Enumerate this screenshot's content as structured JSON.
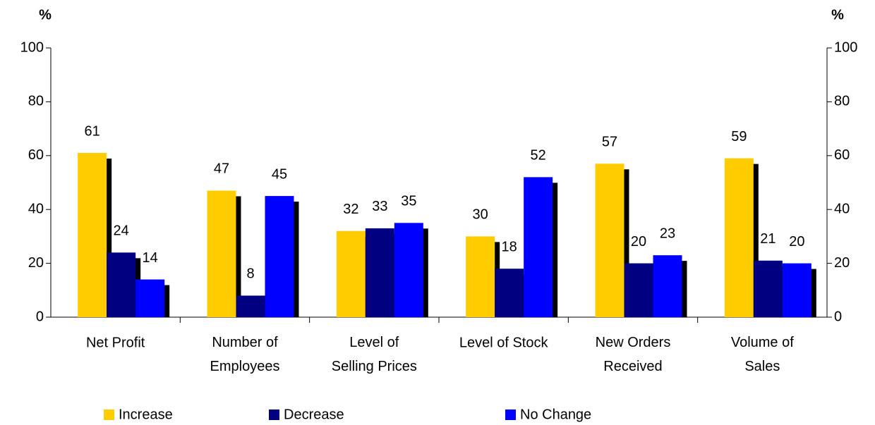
{
  "chart_data": {
    "type": "bar",
    "y_label": "%",
    "y2_label": "%",
    "categories": [
      "Net Profit",
      "Number of\nEmployees",
      "Level of\nSelling Prices",
      "Level of  Stock",
      "New  Orders\nReceived",
      "Volume of\nSales"
    ],
    "series": [
      {
        "name": "Increase",
        "color": "#FFCC00",
        "values": [
          61,
          47,
          32,
          30,
          57,
          59
        ]
      },
      {
        "name": "Decrease",
        "color": "#000080",
        "values": [
          24,
          8,
          33,
          18,
          20,
          21
        ]
      },
      {
        "name": "No Change",
        "color": "#0000FF",
        "values": [
          14,
          45,
          35,
          52,
          23,
          20
        ]
      }
    ],
    "ylim": [
      0,
      100
    ],
    "yticks": [
      0,
      20,
      40,
      60,
      80,
      100
    ],
    "y2lim": [
      0,
      100
    ],
    "y2ticks": [
      0,
      20,
      40,
      60,
      80,
      100
    ],
    "legend": "bottom",
    "grid": false
  }
}
